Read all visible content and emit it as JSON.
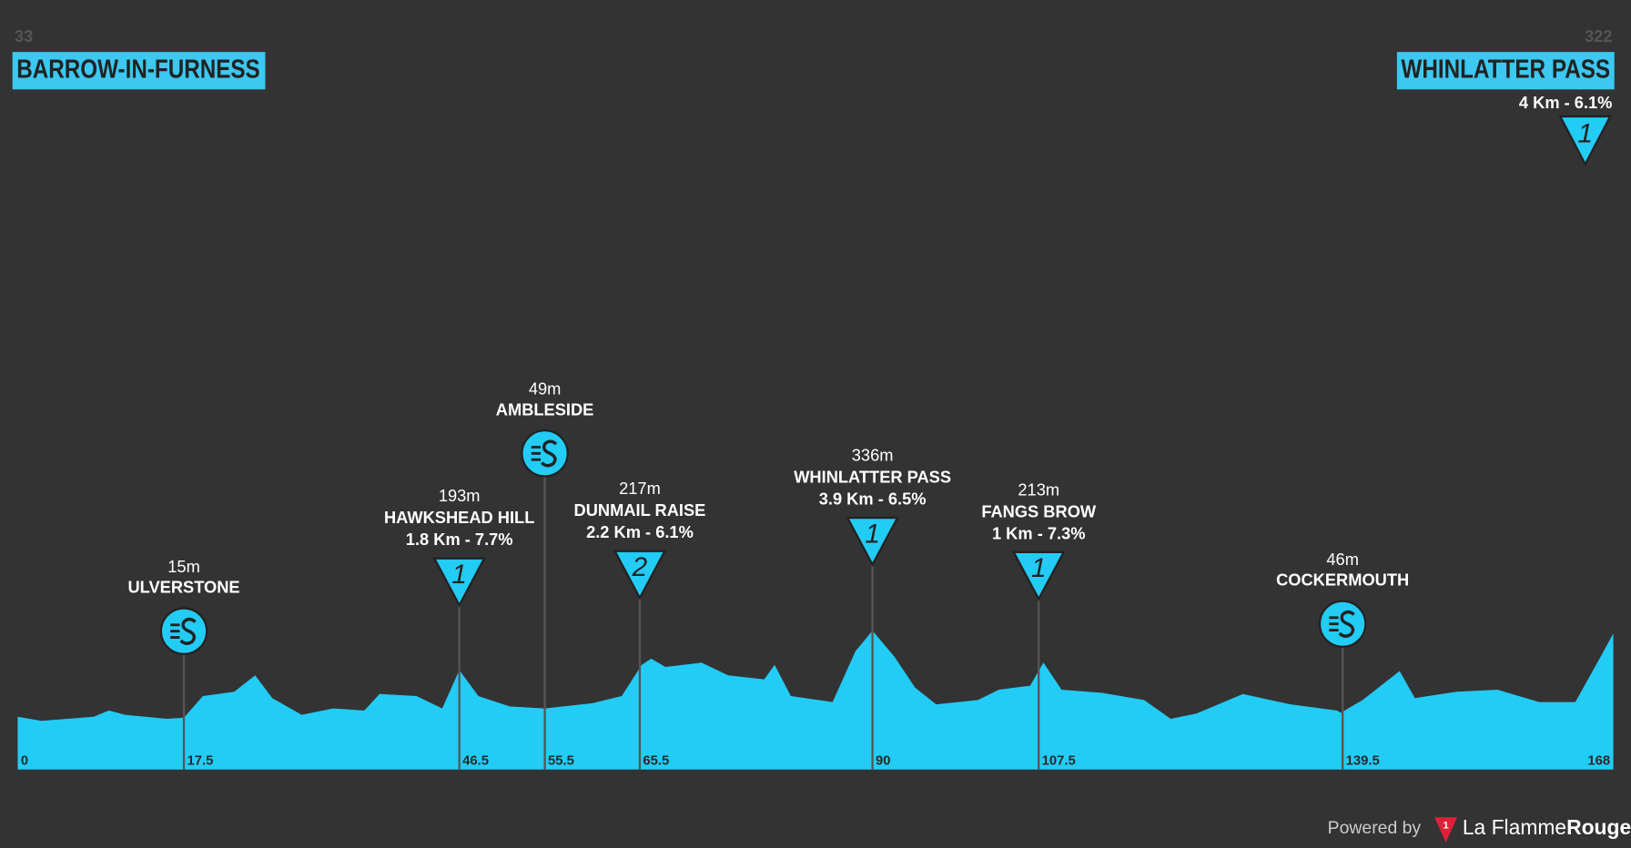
{
  "start": {
    "elevation": 33,
    "name": "BARROW-IN-FURNESS"
  },
  "finish": {
    "elevation": 322,
    "name": "WHINLATTER PASS",
    "detail": "4 Km - 6.1%",
    "category": "1"
  },
  "chart_data": {
    "type": "area",
    "color": "#22ccf5",
    "x": [
      0,
      2.5,
      8,
      9.6,
      11.3,
      15.7,
      17.5,
      19.5,
      22.8,
      25,
      26.8,
      29.9,
      33.2,
      36.5,
      38.1,
      42,
      44.7,
      46.5,
      48.5,
      51.8,
      55.5,
      60.5,
      63.6,
      65.7,
      66.7,
      68.2,
      72,
      74.8,
      78.6,
      79.7,
      81.4,
      85.8,
      88.2,
      90,
      92.3,
      94.5,
      96.7,
      101.1,
      103.3,
      106.6,
      108,
      109.9,
      114.2,
      118.6,
      121.4,
      124.1,
      129,
      134,
      138.9,
      139.3,
      141.6,
      145.5,
      147.1,
      151.5,
      155.8,
      160.2,
      164,
      166.8,
      168
    ],
    "values": [
      33,
      19,
      33,
      55,
      40,
      26,
      30,
      105,
      120,
      177,
      98,
      40,
      62,
      55,
      112,
      105,
      62,
      195,
      105,
      69,
      62,
      80,
      105,
      213,
      235,
      206,
      221,
      177,
      163,
      213,
      105,
      84,
      260,
      332,
      242,
      134,
      76,
      91,
      127,
      141,
      221,
      127,
      116,
      91,
      26,
      44,
      112,
      76,
      55,
      47,
      91,
      192,
      98,
      120,
      127,
      84,
      84,
      250,
      322
    ],
    "xlim": [
      0,
      168
    ],
    "ylim": [
      -150,
      2500
    ],
    "xticks": [
      0,
      17.5,
      46.5,
      55.5,
      65.5,
      90,
      107.5,
      139.5,
      168
    ],
    "climbs": [
      {
        "km": 17.5,
        "elevation": "15m",
        "name": "ULVERSTONE"
      },
      {
        "km": 46.5,
        "elevation": "193m",
        "name": "HAWKSHEAD HILL",
        "detail": "1.8 Km - 7.7%",
        "category": "1"
      },
      {
        "km": 55.5,
        "elevation": "49m",
        "name": "AMBLESIDE"
      },
      {
        "km": 65.5,
        "elevation": "217m",
        "name": "DUNMAIL RAISE",
        "detail": "2.2 Km - 6.1%",
        "category": "2"
      },
      {
        "km": 90,
        "elevation": "336m",
        "name": "WHINLATTER PASS",
        "detail": "3.9 Km - 6.5%",
        "category": "1"
      },
      {
        "km": 107.5,
        "elevation": "213m",
        "name": "FANGS BROW",
        "detail": "1 Km - 7.3%",
        "category": "1"
      },
      {
        "km": 139.5,
        "elevation": "46m",
        "name": "COCKERMOUTH"
      }
    ]
  },
  "footer": {
    "powered_by": "Powered by",
    "badge": "1",
    "brand": "La Flamme",
    "brand_bold": "Rouge"
  }
}
